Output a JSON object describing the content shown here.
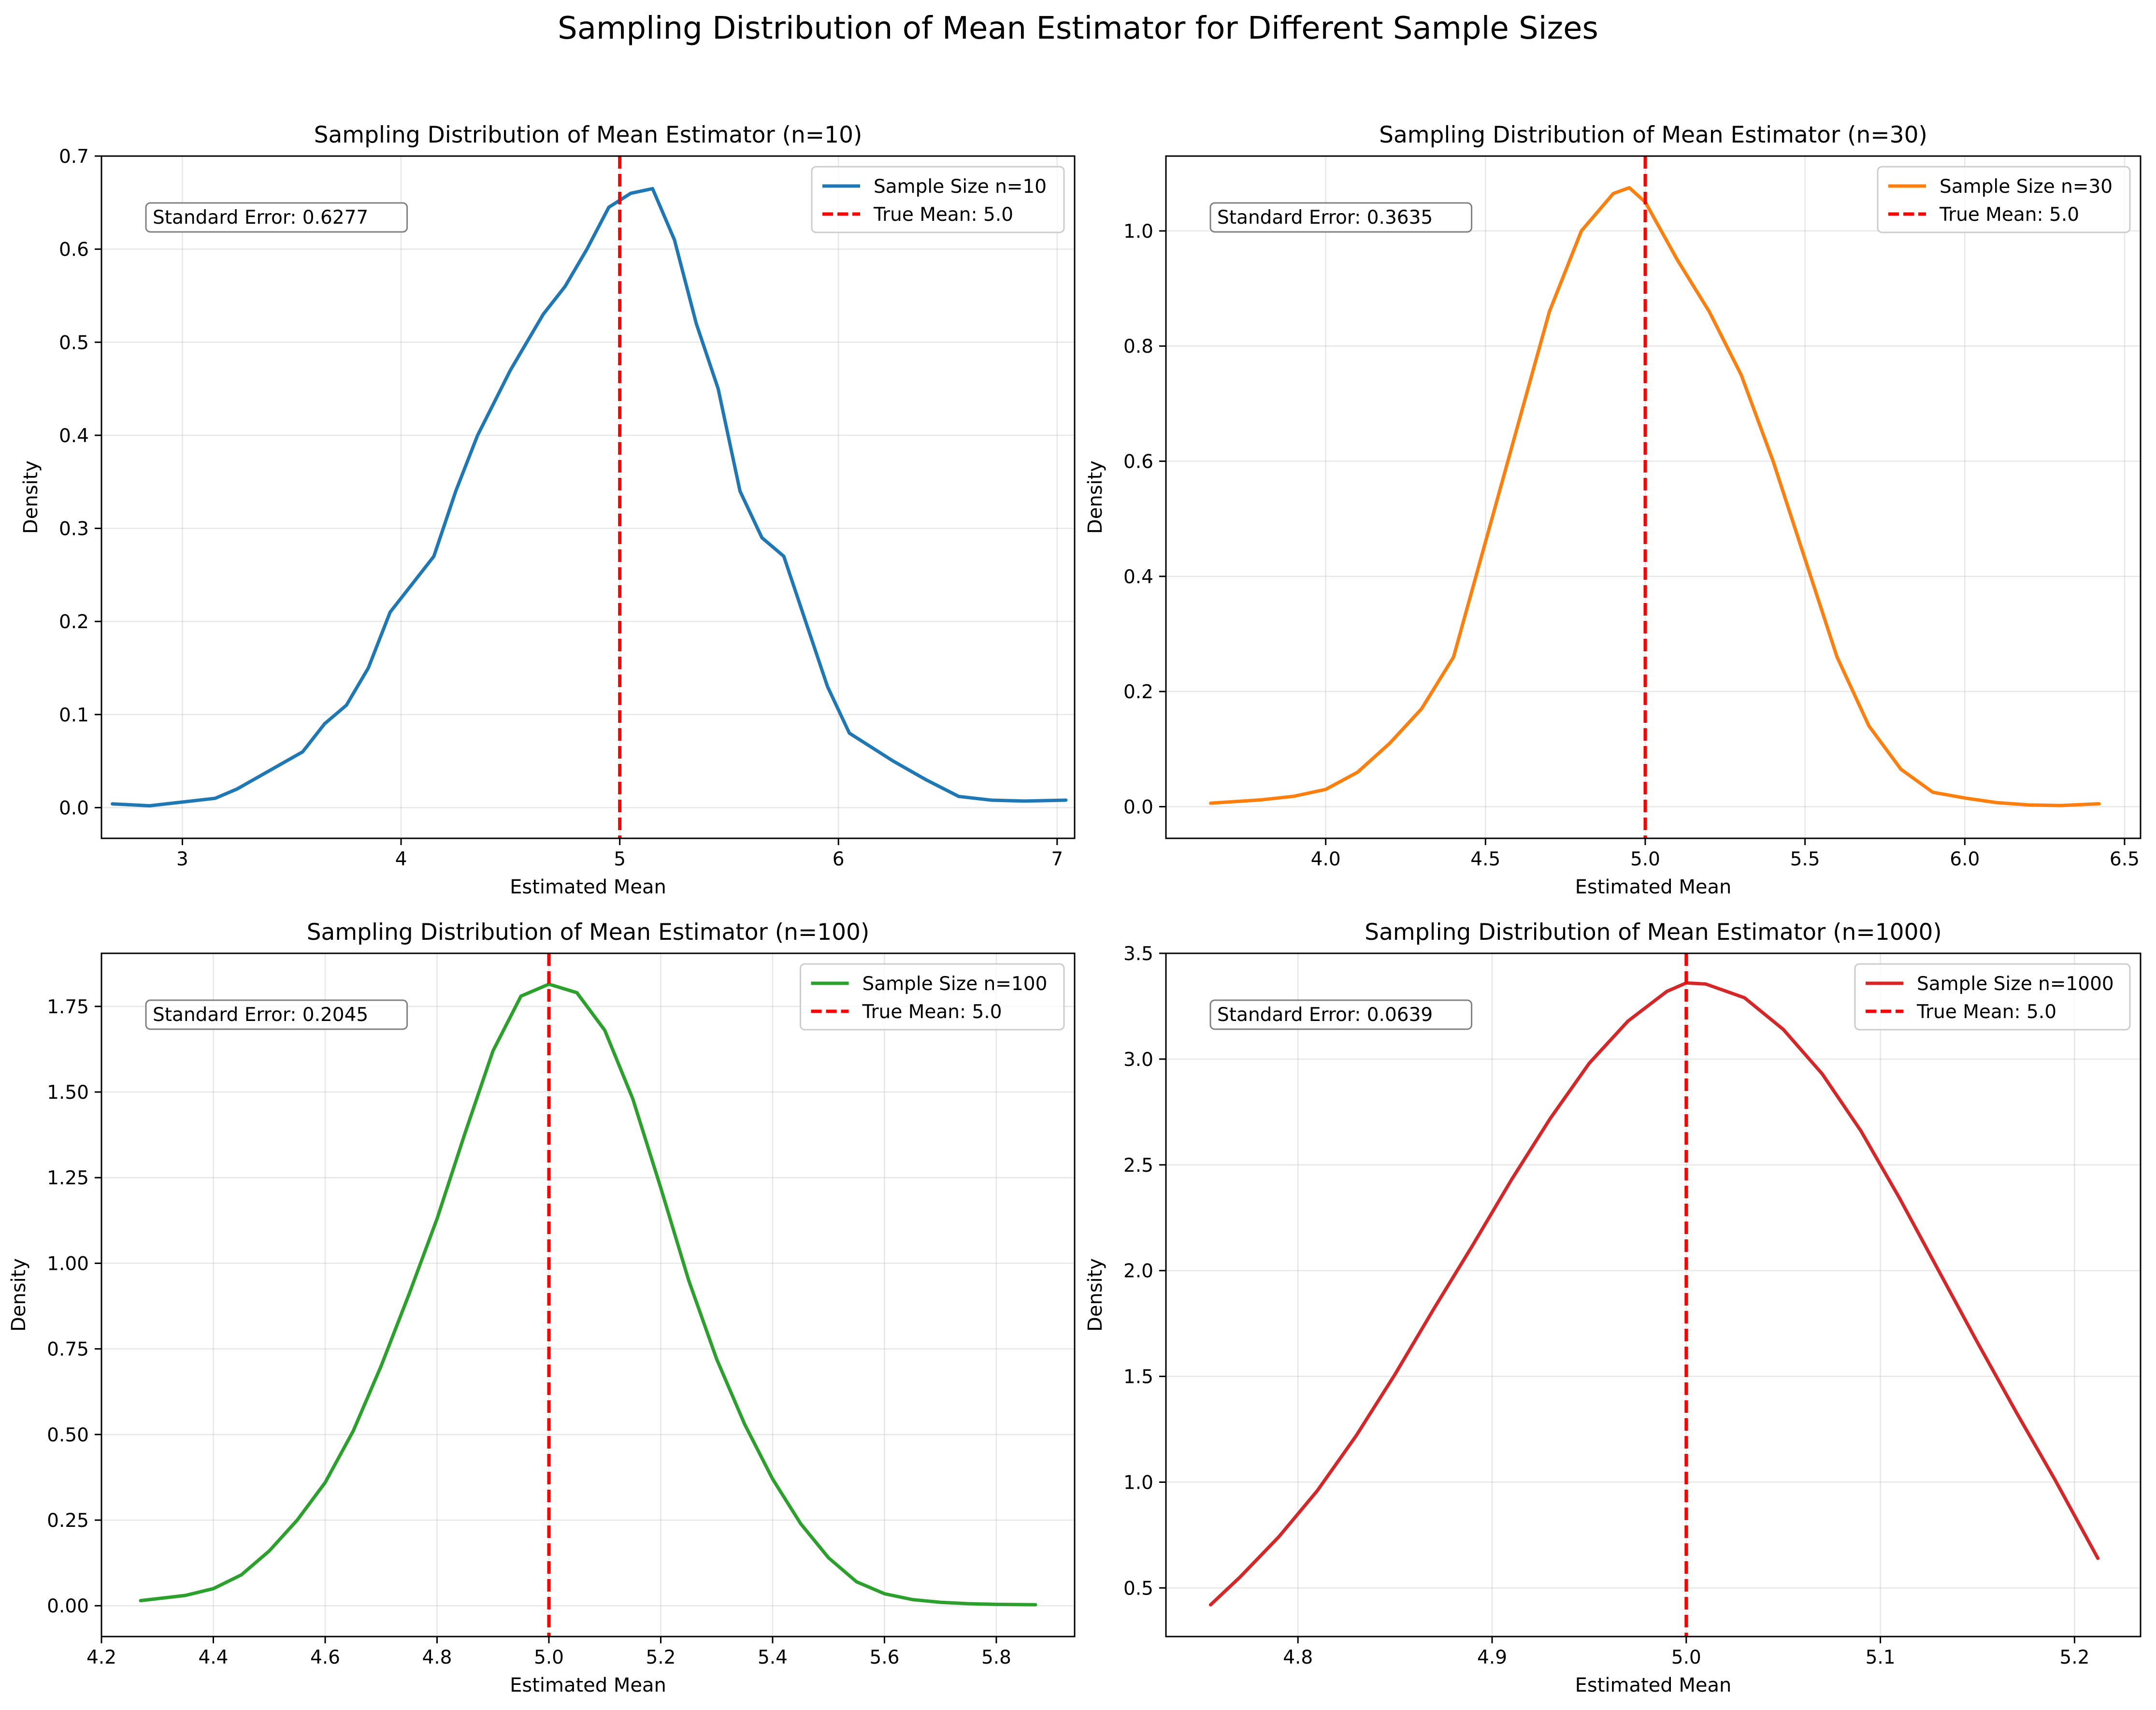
{
  "figure": {
    "suptitle": "Sampling Distribution of Mean Estimator for Different Sample Sizes"
  },
  "chart_data": [
    {
      "type": "line",
      "title": "Sampling Distribution of Mean Estimator (n=10)",
      "xlabel": "Estimated Mean",
      "ylabel": "Density",
      "xlim": [
        2.63,
        7.08
      ],
      "ylim": [
        -0.033,
        0.7
      ],
      "xticks": [
        3,
        4,
        5,
        6,
        7
      ],
      "xtick_labels": [
        "3",
        "4",
        "5",
        "6",
        "7"
      ],
      "yticks": [
        0.0,
        0.1,
        0.2,
        0.3,
        0.4,
        0.5,
        0.6,
        0.7
      ],
      "ytick_labels": [
        "0.0",
        "0.1",
        "0.2",
        "0.3",
        "0.4",
        "0.5",
        "0.6",
        "0.7"
      ],
      "grid": true,
      "legend_position": "upper right",
      "annotation": "Standard Error: 0.6277",
      "vline": {
        "x": 5.0,
        "label": "True Mean: 5.0",
        "color": "#ff0000",
        "style": "dashed"
      },
      "series": [
        {
          "name": "Sample Size n=10",
          "color": "#1f77b4",
          "x": [
            2.68,
            2.85,
            3.0,
            3.15,
            3.25,
            3.4,
            3.55,
            3.65,
            3.75,
            3.85,
            3.95,
            4.05,
            4.15,
            4.25,
            4.35,
            4.5,
            4.65,
            4.75,
            4.85,
            4.95,
            5.05,
            5.15,
            5.25,
            5.35,
            5.45,
            5.55,
            5.65,
            5.75,
            5.85,
            5.95,
            6.05,
            6.15,
            6.25,
            6.4,
            6.55,
            6.7,
            6.85,
            7.04
          ],
          "y": [
            0.004,
            0.002,
            0.006,
            0.01,
            0.02,
            0.04,
            0.06,
            0.09,
            0.11,
            0.15,
            0.21,
            0.24,
            0.27,
            0.34,
            0.4,
            0.47,
            0.53,
            0.56,
            0.6,
            0.645,
            0.66,
            0.665,
            0.61,
            0.52,
            0.45,
            0.34,
            0.29,
            0.27,
            0.2,
            0.13,
            0.08,
            0.065,
            0.05,
            0.03,
            0.012,
            0.008,
            0.007,
            0.008
          ]
        }
      ]
    },
    {
      "type": "line",
      "title": "Sampling Distribution of Mean Estimator (n=30)",
      "xlabel": "Estimated Mean",
      "ylabel": "Density",
      "xlim": [
        3.5,
        6.55
      ],
      "ylim": [
        -0.055,
        1.13
      ],
      "xticks": [
        4.0,
        4.5,
        5.0,
        5.5,
        6.0,
        6.5
      ],
      "xtick_labels": [
        "4.0",
        "4.5",
        "5.0",
        "5.5",
        "6.0",
        "6.5"
      ],
      "yticks": [
        0.0,
        0.2,
        0.4,
        0.6,
        0.8,
        1.0
      ],
      "ytick_labels": [
        "0.0",
        "0.2",
        "0.4",
        "0.6",
        "0.8",
        "1.0"
      ],
      "grid": true,
      "legend_position": "upper right",
      "annotation": "Standard Error: 0.3635",
      "vline": {
        "x": 5.0,
        "label": "True Mean: 5.0",
        "color": "#ff0000",
        "style": "dashed"
      },
      "series": [
        {
          "name": "Sample Size n=30",
          "color": "#ff7f0e",
          "x": [
            3.64,
            3.8,
            3.9,
            4.0,
            4.1,
            4.2,
            4.3,
            4.4,
            4.5,
            4.6,
            4.7,
            4.8,
            4.9,
            4.95,
            5.0,
            5.1,
            5.2,
            5.3,
            5.4,
            5.5,
            5.6,
            5.7,
            5.8,
            5.9,
            6.0,
            6.1,
            6.2,
            6.3,
            6.42
          ],
          "y": [
            0.006,
            0.012,
            0.018,
            0.03,
            0.06,
            0.11,
            0.17,
            0.26,
            0.46,
            0.66,
            0.86,
            1.0,
            1.065,
            1.075,
            1.05,
            0.95,
            0.86,
            0.75,
            0.6,
            0.43,
            0.26,
            0.14,
            0.065,
            0.025,
            0.015,
            0.007,
            0.003,
            0.002,
            0.005
          ]
        }
      ]
    },
    {
      "type": "line",
      "title": "Sampling Distribution of Mean Estimator (n=100)",
      "xlabel": "Estimated Mean",
      "ylabel": "Density",
      "xlim": [
        4.2,
        5.94
      ],
      "ylim": [
        -0.09,
        1.905
      ],
      "xticks": [
        4.2,
        4.4,
        4.6,
        4.8,
        5.0,
        5.2,
        5.4,
        5.6,
        5.8
      ],
      "xtick_labels": [
        "4.2",
        "4.4",
        "4.6",
        "4.8",
        "5.0",
        "5.2",
        "5.4",
        "5.6",
        "5.8"
      ],
      "yticks": [
        0.0,
        0.25,
        0.5,
        0.75,
        1.0,
        1.25,
        1.5,
        1.75
      ],
      "ytick_labels": [
        "0.00",
        "0.25",
        "0.50",
        "0.75",
        "1.00",
        "1.25",
        "1.50",
        "1.75"
      ],
      "grid": true,
      "legend_position": "upper right",
      "annotation": "Standard Error: 0.2045",
      "vline": {
        "x": 5.0,
        "label": "True Mean: 5.0",
        "color": "#ff0000",
        "style": "dashed"
      },
      "series": [
        {
          "name": "Sample Size n=100",
          "color": "#2ca02c",
          "x": [
            4.27,
            4.35,
            4.4,
            4.45,
            4.5,
            4.55,
            4.6,
            4.65,
            4.7,
            4.75,
            4.8,
            4.85,
            4.9,
            4.95,
            5.0,
            5.05,
            5.1,
            5.15,
            5.2,
            5.25,
            5.3,
            5.35,
            5.4,
            5.45,
            5.5,
            5.55,
            5.6,
            5.65,
            5.7,
            5.75,
            5.8,
            5.87
          ],
          "y": [
            0.015,
            0.03,
            0.05,
            0.09,
            0.16,
            0.25,
            0.36,
            0.51,
            0.7,
            0.91,
            1.13,
            1.38,
            1.62,
            1.78,
            1.815,
            1.79,
            1.68,
            1.48,
            1.22,
            0.95,
            0.72,
            0.53,
            0.37,
            0.24,
            0.14,
            0.07,
            0.035,
            0.018,
            0.01,
            0.006,
            0.004,
            0.003
          ]
        }
      ]
    },
    {
      "type": "line",
      "title": "Sampling Distribution of Mean Estimator (n=1000)",
      "xlabel": "Estimated Mean",
      "ylabel": "Density",
      "xlim": [
        4.732,
        5.234
      ],
      "ylim": [
        0.27,
        3.5
      ],
      "xticks": [
        4.8,
        4.9,
        5.0,
        5.1,
        5.2
      ],
      "xtick_labels": [
        "4.8",
        "4.9",
        "5.0",
        "5.1",
        "5.2"
      ],
      "yticks": [
        0.5,
        1.0,
        1.5,
        2.0,
        2.5,
        3.0,
        3.5
      ],
      "ytick_labels": [
        "0.5",
        "1.0",
        "1.5",
        "2.0",
        "2.5",
        "3.0",
        "3.5"
      ],
      "grid": true,
      "legend_position": "upper right",
      "annotation": "Standard Error: 0.0639",
      "vline": {
        "x": 5.0,
        "label": "True Mean: 5.0",
        "color": "#ff0000",
        "style": "dashed"
      },
      "series": [
        {
          "name": "Sample Size n=1000",
          "color": "#d62728",
          "x": [
            4.755,
            4.77,
            4.79,
            4.81,
            4.83,
            4.85,
            4.87,
            4.89,
            4.91,
            4.93,
            4.95,
            4.97,
            4.99,
            5.0,
            5.01,
            5.03,
            5.05,
            5.07,
            5.09,
            5.11,
            5.13,
            5.15,
            5.17,
            5.19,
            5.212
          ],
          "y": [
            0.42,
            0.55,
            0.74,
            0.96,
            1.22,
            1.51,
            1.82,
            2.12,
            2.43,
            2.72,
            2.98,
            3.18,
            3.32,
            3.36,
            3.355,
            3.29,
            3.14,
            2.93,
            2.66,
            2.34,
            2.0,
            1.66,
            1.33,
            1.01,
            0.64
          ]
        }
      ]
    }
  ]
}
